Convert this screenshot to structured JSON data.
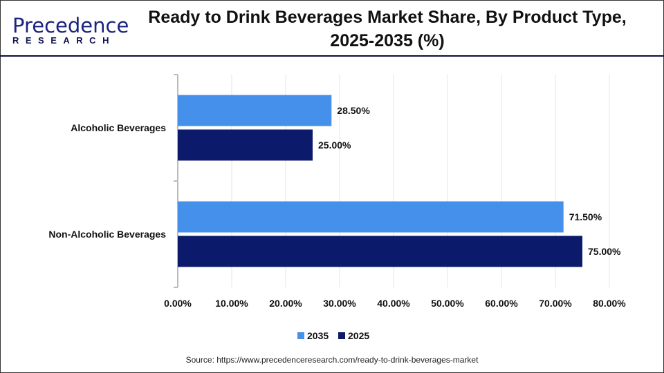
{
  "logo": {
    "line1": "Precedence",
    "line2": "RESEARCH"
  },
  "title": "Ready to Drink Beverages Market Share, By Product Type, 2025-2035 (%)",
  "source": "Source: https://www.precedenceresearch.com/ready-to-drink-beverages-market",
  "chart_data": {
    "type": "bar",
    "orientation": "horizontal",
    "title": "Ready to Drink Beverages Market Share, By Product Type, 2025-2035 (%)",
    "categories": [
      "Alcoholic Beverages",
      "Non-Alcoholic Beverages"
    ],
    "series": [
      {
        "name": "2035",
        "color": "#4590ea",
        "values": [
          28.5,
          71.5
        ],
        "labels": [
          "28.50%",
          "71.50%"
        ]
      },
      {
        "name": "2025",
        "color": "#0c1a6b",
        "values": [
          25.0,
          75.0
        ],
        "labels": [
          "25.00%",
          "75.00%"
        ]
      }
    ],
    "xlim": [
      0,
      80
    ],
    "xticks": [
      "0.00%",
      "10.00%",
      "20.00%",
      "30.00%",
      "40.00%",
      "50.00%",
      "60.00%",
      "70.00%",
      "80.00%"
    ],
    "grid": true,
    "legend": "bottom"
  }
}
